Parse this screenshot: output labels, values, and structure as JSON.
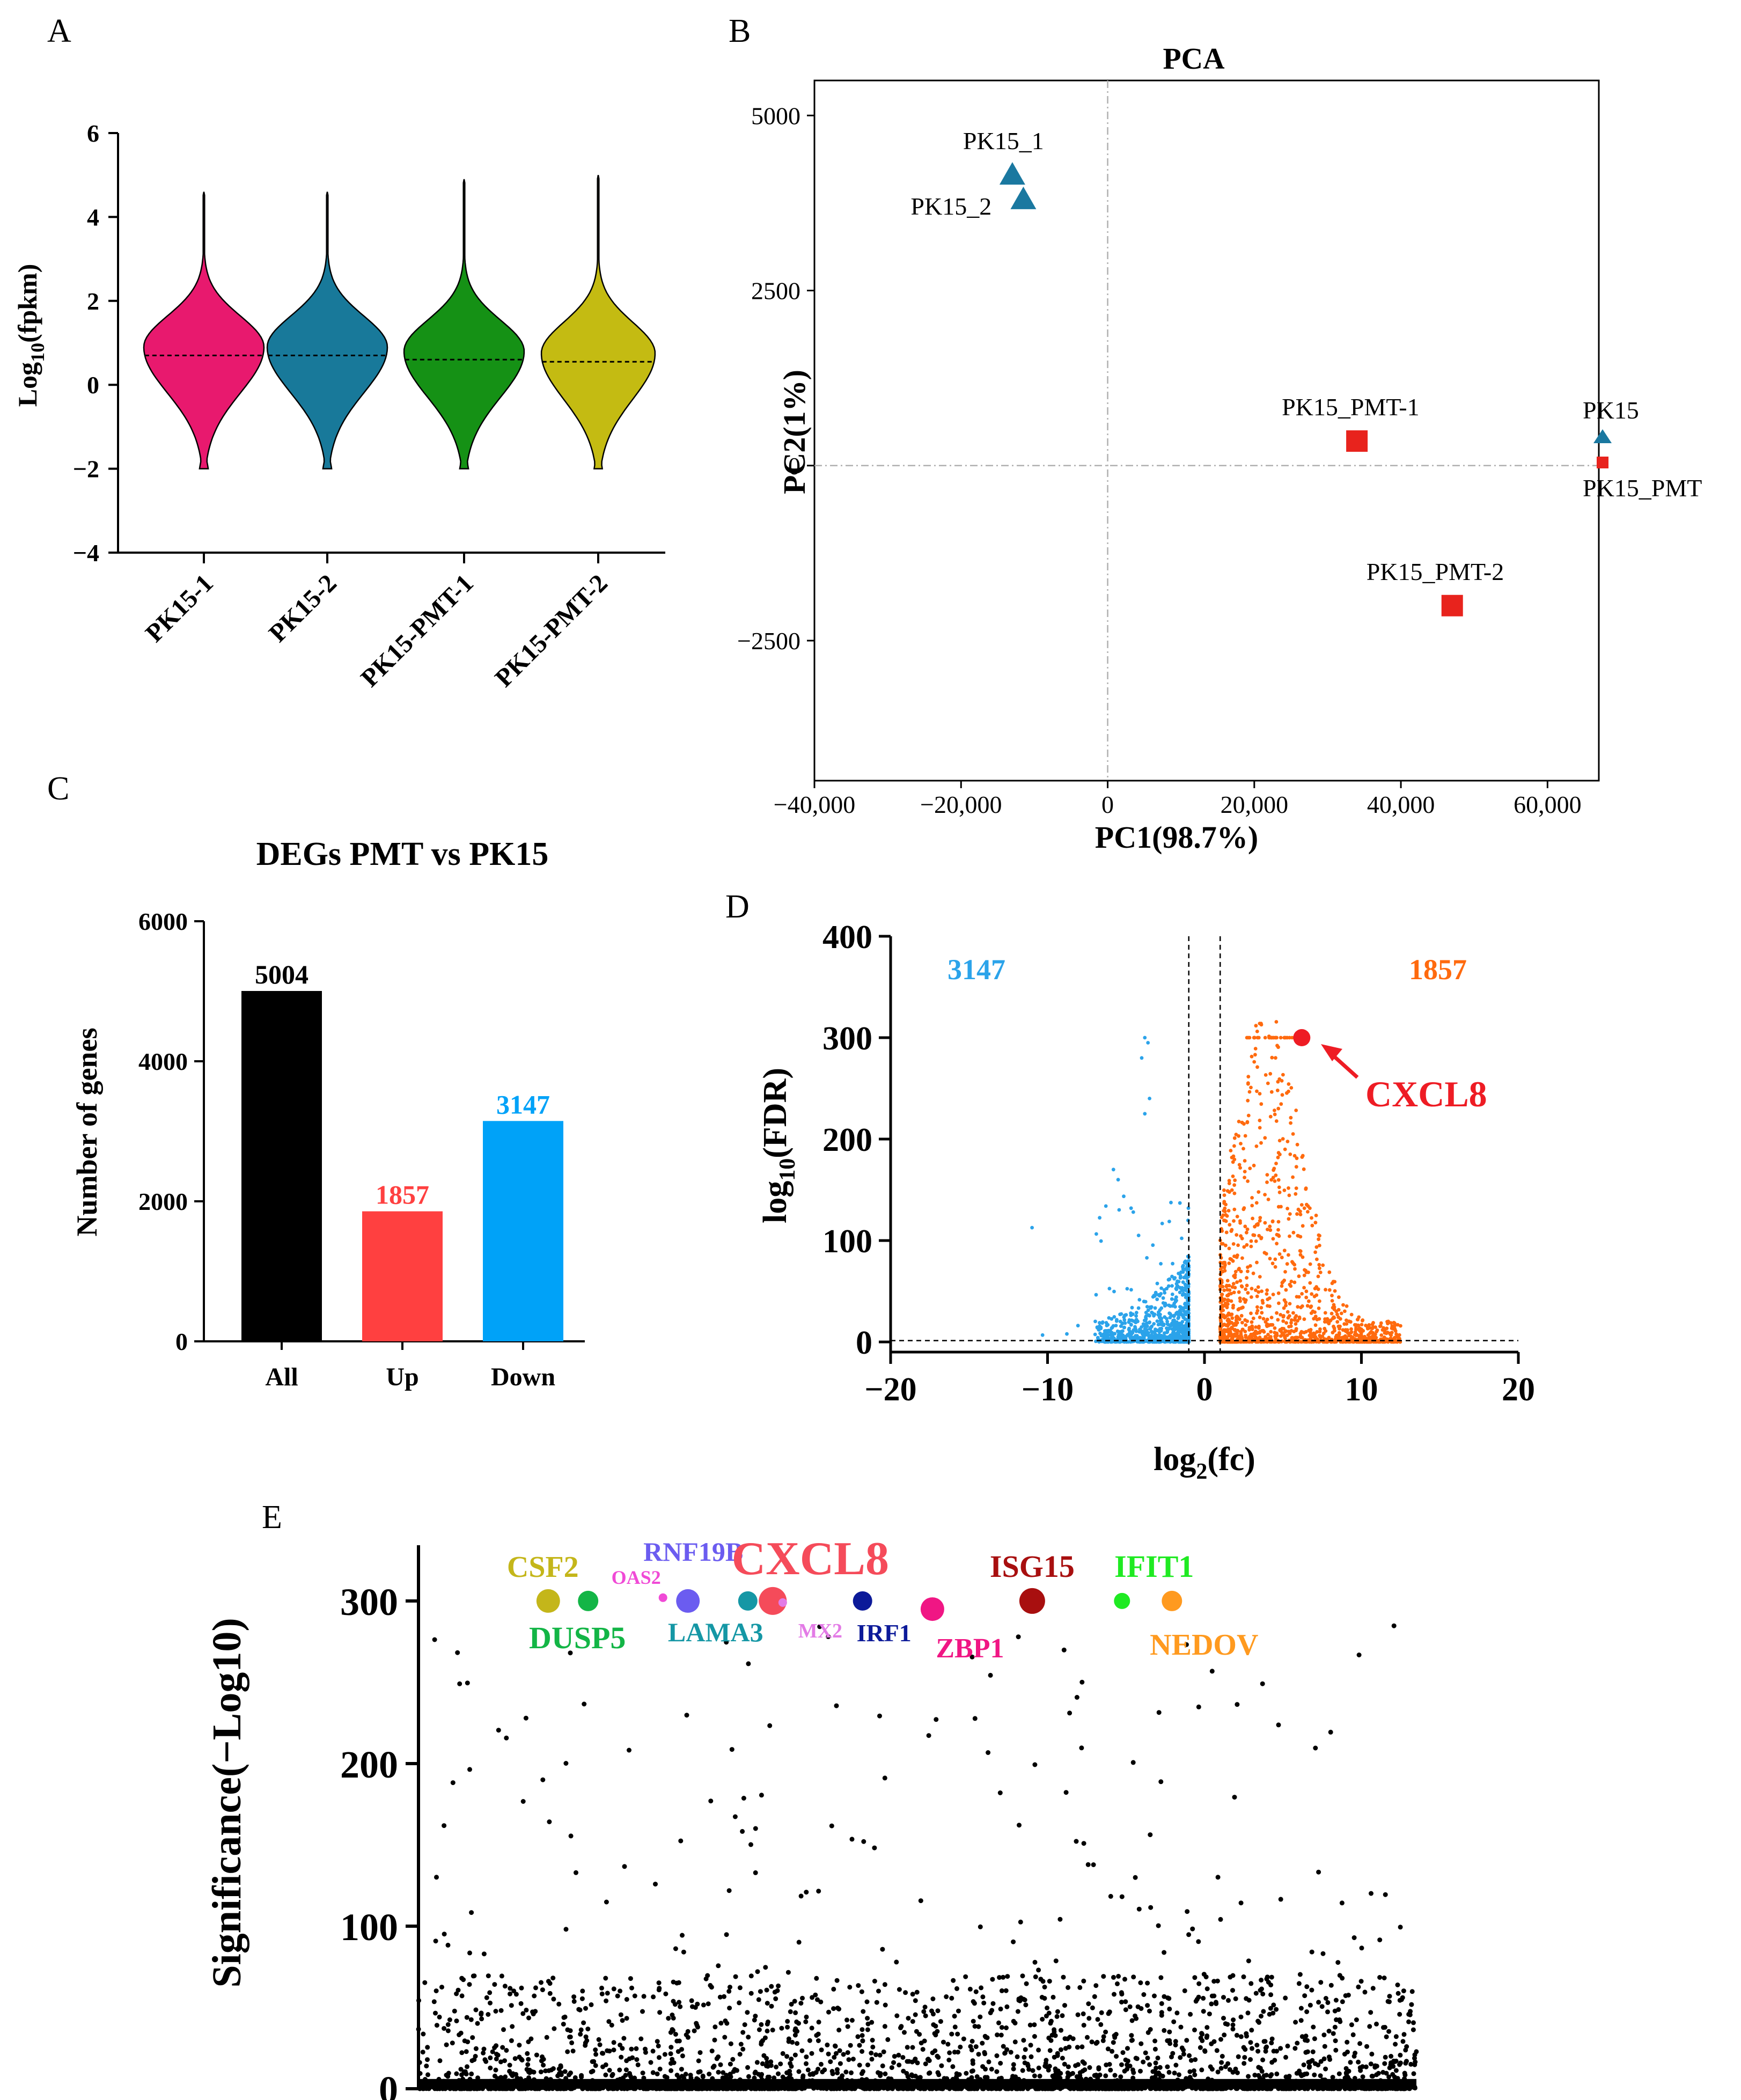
{
  "panels": {
    "A": {
      "letter": "A"
    },
    "B": {
      "letter": "B"
    },
    "C": {
      "letter": "C"
    },
    "D": {
      "letter": "D"
    },
    "E": {
      "letter": "E"
    }
  },
  "chart_data": [
    {
      "id": "A",
      "type": "violin",
      "title": "",
      "ylabel_main": "Log",
      "ylabel_sub": "10",
      "ylabel_tail": "(fpkm)",
      "ylim": [
        -4,
        6
      ],
      "yticks": [
        -4,
        -2,
        0,
        2,
        4,
        6
      ],
      "categories": [
        "PK15-1",
        "PK15-2",
        "PK15-PMT-1",
        "PK15-PMT-2"
      ],
      "colors": [
        "#e8196e",
        "#18799a",
        "#159115",
        "#c4bb12"
      ],
      "medians": [
        0.7,
        0.7,
        0.6,
        0.55
      ],
      "max": [
        4.6,
        4.6,
        4.9,
        5.0
      ],
      "min": [
        -2,
        -2,
        -2,
        -2
      ]
    },
    {
      "id": "B",
      "type": "scatter",
      "title": "PCA",
      "xlabel": "PC1(98.7%)",
      "ylabel": "PC2(1%)",
      "xlim": [
        -40000,
        67000
      ],
      "ylim": [
        -4500,
        5500
      ],
      "xticks": [
        -40000,
        -20000,
        0,
        20000,
        40000,
        60000
      ],
      "xtick_labels": [
        "−40,000",
        "−20,000",
        "0",
        "20,000",
        "40,000",
        "60,000"
      ],
      "yticks": [
        -2500,
        0,
        2500,
        5000
      ],
      "ytick_labels": [
        "−2500",
        "0",
        "2500",
        "5000"
      ],
      "points": [
        {
          "label": "PK15_1",
          "x": -13000,
          "y": 4150,
          "group": "PK15"
        },
        {
          "label": "PK15_2",
          "x": -11500,
          "y": 3800,
          "group": "PK15"
        },
        {
          "label": "PK15_PMT-1",
          "x": 34000,
          "y": 350,
          "group": "PK15_PMT"
        },
        {
          "label": "PK15_PMT-2",
          "x": 47000,
          "y": -2000,
          "group": "PK15_PMT"
        }
      ],
      "legend": [
        {
          "label": "PK15",
          "color": "#1a78a0",
          "marker": "triangle"
        },
        {
          "label": "PK15_PMT",
          "color": "#e8231d",
          "marker": "square"
        }
      ]
    },
    {
      "id": "C",
      "type": "bar",
      "title": "DEGs PMT vs PK15",
      "ylabel": "Number of genes",
      "ylim": [
        0,
        6000
      ],
      "yticks": [
        0,
        2000,
        4000,
        6000
      ],
      "categories": [
        "All",
        "Up",
        "Down"
      ],
      "values": [
        5004,
        1857,
        3147
      ],
      "value_labels": [
        "5004",
        "1857",
        "3147"
      ],
      "colors": [
        "#000000",
        "#ff4040",
        "#00a2f8"
      ]
    },
    {
      "id": "D",
      "type": "scatter",
      "title": "volcano",
      "xlabel_main": "log",
      "xlabel_sub": "2",
      "xlabel_tail": "(fc)",
      "ylabel_main": "log",
      "ylabel_sub": "10",
      "ylabel_tail": "(FDR)",
      "xlim": [
        -20,
        20
      ],
      "ylim": [
        -10,
        400
      ],
      "xticks": [
        -20,
        -10,
        0,
        10,
        20
      ],
      "xtick_labels": [
        "−20",
        "−10",
        "0",
        "10",
        "20"
      ],
      "yticks": [
        0,
        100,
        200,
        300,
        400
      ],
      "down_count": "3147",
      "up_count": "1857",
      "down_color": "#2ba3ea",
      "up_color": "#ff6a0e",
      "fc_threshold": 1,
      "highlight": {
        "label": "CXCL8",
        "x": 6.2,
        "y": 300,
        "color": "#ee1c24"
      }
    },
    {
      "id": "E",
      "type": "scatter",
      "title": "manhattan",
      "ylabel": "Significance(−Log10)",
      "ylim": [
        0,
        330
      ],
      "yticks": [
        0,
        100,
        200,
        300
      ],
      "highlights": [
        {
          "label": "CSF2",
          "x": 0.13,
          "y": 300,
          "color": "#c4b61a",
          "size": 44,
          "label_pos": "above"
        },
        {
          "label": "DUSP5",
          "x": 0.17,
          "y": 300,
          "color": "#13b546",
          "size": 38,
          "label_pos": "below"
        },
        {
          "label": "OAS2",
          "x": 0.245,
          "y": 302,
          "color": "#f04ad6",
          "size": 16,
          "label_pos": "above"
        },
        {
          "label": "RNF19B",
          "x": 0.27,
          "y": 300,
          "color": "#6b5cf0",
          "size": 44,
          "label_pos": "above"
        },
        {
          "label": "LAMA3",
          "x": 0.33,
          "y": 300,
          "color": "#1597a5",
          "size": 36,
          "label_pos": "below"
        },
        {
          "label": "CXCL8",
          "x": 0.355,
          "y": 300,
          "color": "#f54b5a",
          "size": 52,
          "label_pos": "above"
        },
        {
          "label": "MX2",
          "x": 0.365,
          "y": 299,
          "color": "#e37be6",
          "size": 16,
          "label_pos": "below"
        },
        {
          "label": "IRF1",
          "x": 0.445,
          "y": 300,
          "color": "#0c1a99",
          "size": 36,
          "label_pos": "below"
        },
        {
          "label": "ZBP1",
          "x": 0.515,
          "y": 295,
          "color": "#f01684",
          "size": 44,
          "label_pos": "below"
        },
        {
          "label": "ISG15",
          "x": 0.615,
          "y": 300,
          "color": "#a80f0f",
          "size": 48,
          "label_pos": "above"
        },
        {
          "label": "IFIT1",
          "x": 0.705,
          "y": 300,
          "color": "#1fea22",
          "size": 30,
          "label_pos": "above"
        },
        {
          "label": "NEDOV",
          "x": 0.755,
          "y": 300,
          "color": "#ff9a1f",
          "size": 38,
          "label_pos": "below"
        }
      ]
    }
  ]
}
